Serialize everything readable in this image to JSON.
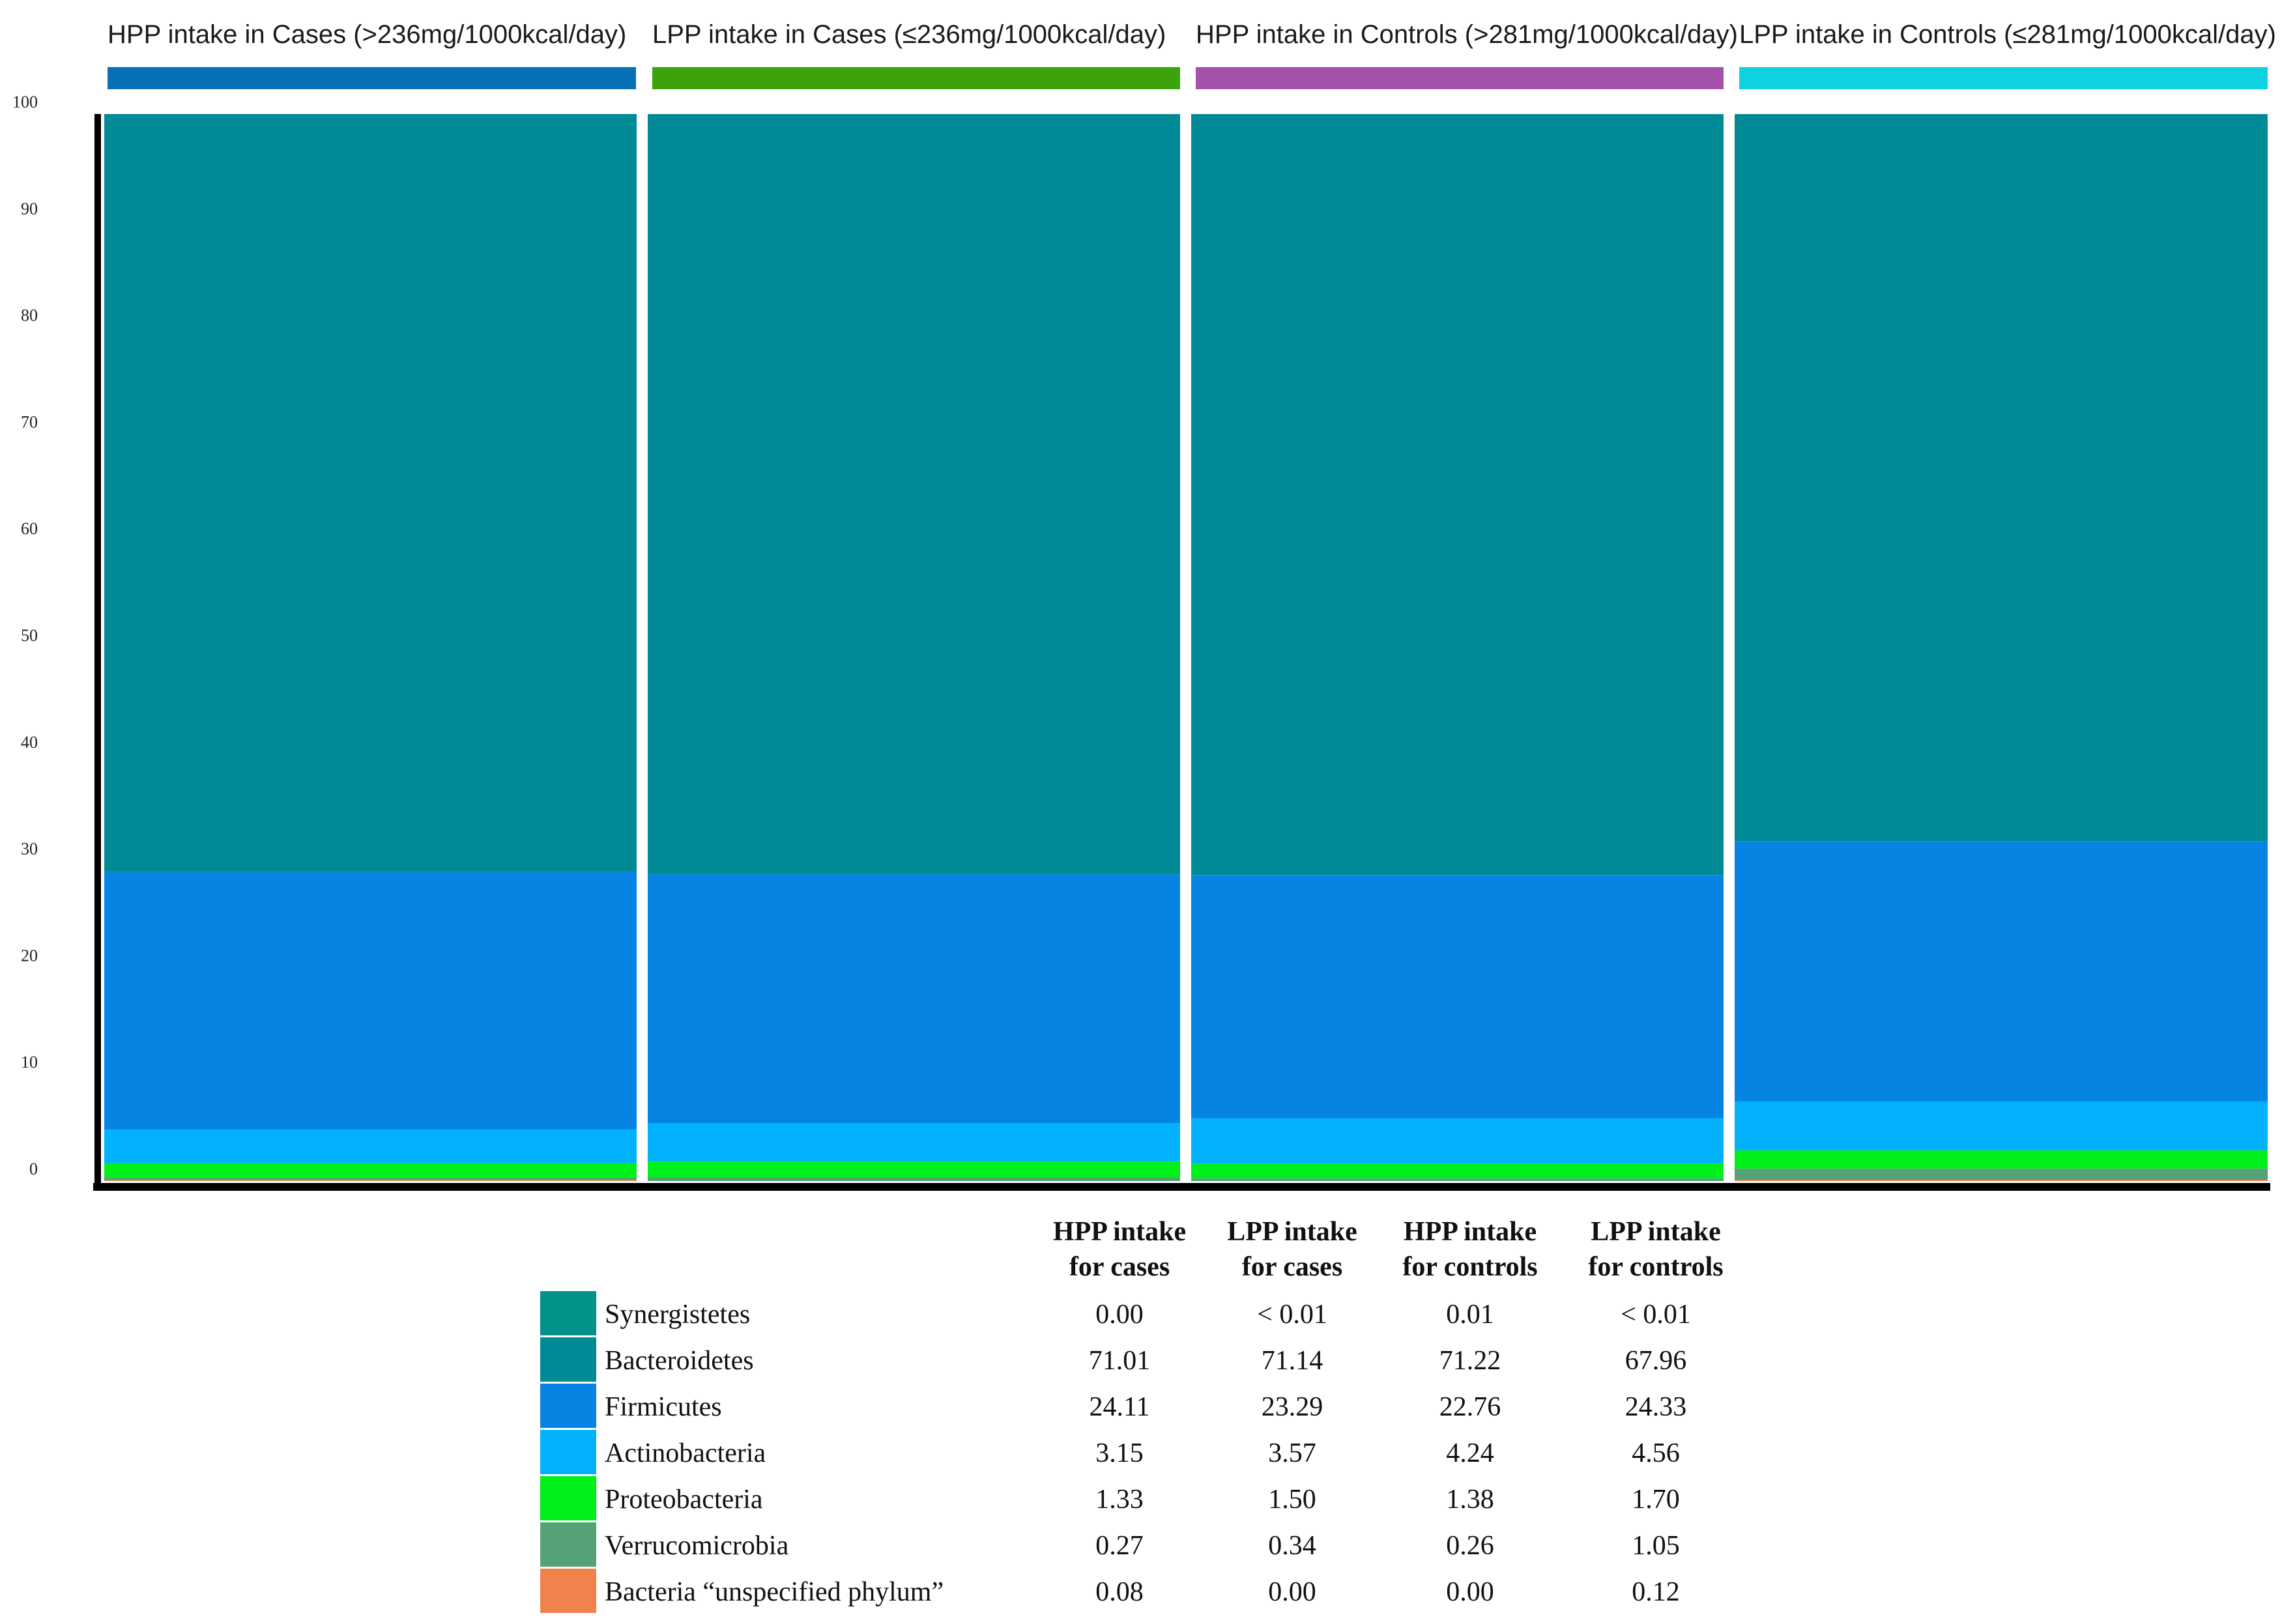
{
  "chart_data": {
    "type": "bar",
    "stacked": true,
    "ylim": [
      0,
      100
    ],
    "yticks": [
      "0",
      "10",
      "20",
      "30",
      "40",
      "50",
      "60",
      "70",
      "80",
      "90",
      "100"
    ],
    "groups": [
      {
        "label": "HPP intake in Cases (>236mg/1000kcal/day)",
        "color": "#0672b5"
      },
      {
        "label": "LPP intake in Cases (≤236mg/1000kcal/day)",
        "color": "#3da30c"
      },
      {
        "label": "HPP intake in Controls (>281mg/1000kcal/day)",
        "color": "#a552ab"
      },
      {
        "label": "LPP intake in Controls (≤281mg/1000kcal/day)",
        "color": "#0fd1df"
      }
    ],
    "table_headers": [
      [
        "HPP intake",
        "for cases"
      ],
      [
        "LPP intake",
        "for cases"
      ],
      [
        "HPP intake",
        "for controls"
      ],
      [
        "LPP intake",
        "for controls"
      ]
    ],
    "series": [
      {
        "name": "Synergistetes",
        "color": "#01938a",
        "values": [
          0.0,
          0.01,
          0.01,
          0.01
        ],
        "display": [
          "0.00",
          "< 0.01",
          "0.01",
          "< 0.01"
        ]
      },
      {
        "name": "Bacteroidetes",
        "color": "#008a96",
        "values": [
          71.01,
          71.14,
          71.22,
          67.96
        ],
        "display": [
          "71.01",
          "71.14",
          "71.22",
          "67.96"
        ]
      },
      {
        "name": "Firmicutes",
        "color": "#0584e3",
        "values": [
          24.11,
          23.29,
          22.76,
          24.33
        ],
        "display": [
          "24.11",
          "23.29",
          "22.76",
          "24.33"
        ]
      },
      {
        "name": "Actinobacteria",
        "color": "#02b1fb",
        "values": [
          3.15,
          3.57,
          4.24,
          4.56
        ],
        "display": [
          "3.15",
          "3.57",
          "4.24",
          "4.56"
        ]
      },
      {
        "name": "Proteobacteria",
        "color": "#00f01c",
        "values": [
          1.33,
          1.5,
          1.38,
          1.7
        ],
        "display": [
          "1.33",
          "1.50",
          "1.38",
          "1.70"
        ]
      },
      {
        "name": "Verrucomicrobia",
        "color": "#55a276",
        "values": [
          0.27,
          0.34,
          0.26,
          1.05
        ],
        "display": [
          "0.27",
          "0.34",
          "0.26",
          "1.05"
        ]
      },
      {
        "name": "Bacteria “unspecified phylum”",
        "color": "#f0834d",
        "values": [
          0.08,
          0.0,
          0.0,
          0.12
        ],
        "display": [
          "0.08",
          "0.00",
          "0.00",
          "0.12"
        ]
      }
    ]
  }
}
